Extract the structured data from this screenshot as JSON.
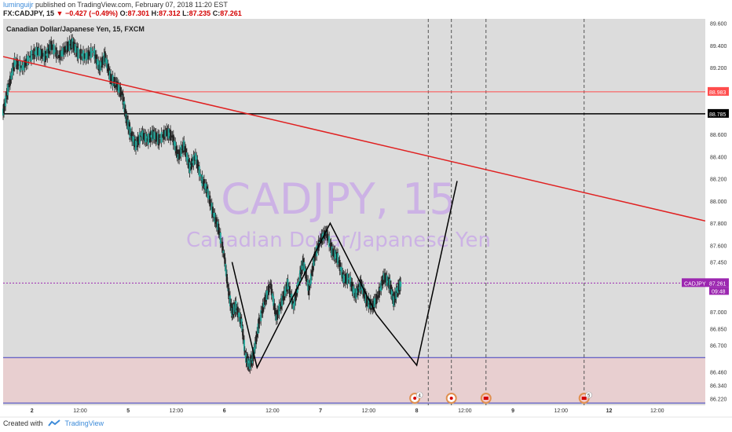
{
  "header": {
    "user": "luminguijr",
    "published": "published on TradingView.com, February 07, 2018 11:20 EST",
    "symbol_line": "FX:CADJPY, 15",
    "change": "−0.427 (−0.49%)",
    "ohlc": [
      {
        "label": "O:",
        "value": "87.301"
      },
      {
        "label": "H:",
        "value": "87.312"
      },
      {
        "label": "L:",
        "value": "87.235"
      },
      {
        "label": "C:",
        "value": "87.261"
      }
    ]
  },
  "footer": {
    "created_with": "Created with",
    "brand": "TradingView"
  },
  "chart_data": {
    "type": "candlestick",
    "title": "Canadian Dollar/Japanese Yen, 15, FXCM",
    "watermark": {
      "symbol": "CADJPY, 15",
      "name": "Canadian Dollar/Japanese Yen"
    },
    "ylim": [
      86.16,
      89.64
    ],
    "y_ticks": [
      "89.600",
      "89.400",
      "89.200",
      "89.000",
      "88.800",
      "88.600",
      "88.400",
      "88.200",
      "88.000",
      "87.800",
      "87.600",
      "87.450",
      "87.200",
      "87.000",
      "86.850",
      "86.700",
      "86.460",
      "86.340",
      "86.220"
    ],
    "y_tick_values": [
      89.6,
      89.4,
      89.2,
      89.0,
      88.8,
      88.6,
      88.4,
      88.2,
      88.0,
      87.8,
      87.6,
      87.45,
      87.2,
      87.0,
      86.85,
      86.7,
      86.46,
      86.34,
      86.22
    ],
    "x_range": [
      0,
      7.3
    ],
    "x_ticks": [
      {
        "label": "2",
        "x": 0.3
      },
      {
        "label": "12:00",
        "x": 0.8
      },
      {
        "label": "5",
        "x": 1.3
      },
      {
        "label": "12:00",
        "x": 1.8
      },
      {
        "label": "6",
        "x": 2.3
      },
      {
        "label": "12:00",
        "x": 2.8
      },
      {
        "label": "7",
        "x": 3.3
      },
      {
        "label": "12:00",
        "x": 3.8
      },
      {
        "label": "8",
        "x": 4.3
      },
      {
        "label": "12:00",
        "x": 4.8
      },
      {
        "label": "9",
        "x": 5.3
      },
      {
        "label": "12:00",
        "x": 5.8
      },
      {
        "label": "12",
        "x": 6.3
      },
      {
        "label": "12:00",
        "x": 6.8
      }
    ],
    "price_path": [
      [
        0.0,
        88.8
      ],
      [
        0.05,
        89.0
      ],
      [
        0.12,
        89.25
      ],
      [
        0.2,
        89.2
      ],
      [
        0.28,
        89.3
      ],
      [
        0.36,
        89.35
      ],
      [
        0.44,
        89.3
      ],
      [
        0.5,
        89.4
      ],
      [
        0.58,
        89.3
      ],
      [
        0.66,
        89.38
      ],
      [
        0.72,
        89.42
      ],
      [
        0.78,
        89.33
      ],
      [
        0.86,
        89.3
      ],
      [
        0.94,
        89.35
      ],
      [
        1.0,
        89.2
      ],
      [
        1.06,
        89.3
      ],
      [
        1.12,
        89.1
      ],
      [
        1.18,
        89.05
      ],
      [
        1.24,
        88.95
      ],
      [
        1.28,
        88.75
      ],
      [
        1.32,
        88.62
      ],
      [
        1.38,
        88.5
      ],
      [
        1.44,
        88.6
      ],
      [
        1.5,
        88.55
      ],
      [
        1.56,
        88.6
      ],
      [
        1.62,
        88.55
      ],
      [
        1.7,
        88.62
      ],
      [
        1.76,
        88.58
      ],
      [
        1.82,
        88.4
      ],
      [
        1.88,
        88.5
      ],
      [
        1.94,
        88.3
      ],
      [
        2.0,
        88.4
      ],
      [
        2.06,
        88.2
      ],
      [
        2.12,
        88.1
      ],
      [
        2.18,
        87.9
      ],
      [
        2.24,
        87.75
      ],
      [
        2.3,
        87.5
      ],
      [
        2.34,
        87.2
      ],
      [
        2.38,
        87.0
      ],
      [
        2.42,
        87.05
      ],
      [
        2.48,
        86.9
      ],
      [
        2.52,
        86.6
      ],
      [
        2.56,
        86.52
      ],
      [
        2.6,
        86.6
      ],
      [
        2.66,
        86.9
      ],
      [
        2.72,
        87.1
      ],
      [
        2.78,
        87.25
      ],
      [
        2.84,
        86.95
      ],
      [
        2.9,
        87.1
      ],
      [
        2.96,
        87.25
      ],
      [
        3.02,
        87.05
      ],
      [
        3.08,
        87.3
      ],
      [
        3.12,
        87.45
      ],
      [
        3.18,
        87.2
      ],
      [
        3.24,
        87.5
      ],
      [
        3.3,
        87.65
      ],
      [
        3.36,
        87.72
      ],
      [
        3.42,
        87.55
      ],
      [
        3.48,
        87.48
      ],
      [
        3.54,
        87.3
      ],
      [
        3.6,
        87.3
      ],
      [
        3.66,
        87.15
      ],
      [
        3.72,
        87.25
      ],
      [
        3.78,
        87.1
      ],
      [
        3.84,
        87.05
      ],
      [
        3.9,
        87.15
      ],
      [
        3.96,
        87.32
      ],
      [
        4.02,
        87.25
      ],
      [
        4.06,
        87.1
      ],
      [
        4.1,
        87.2
      ],
      [
        4.14,
        87.26
      ]
    ],
    "levels": [
      {
        "label": "88.983",
        "value": 88.983,
        "color": "#ff4d4d"
      },
      {
        "label": "88.785",
        "value": 88.785,
        "color": "#000000"
      },
      {
        "label": "CADJPY",
        "value": 87.261,
        "color": "#9c27b0",
        "price": "87.261",
        "time": "09:48"
      },
      {
        "label": "",
        "value": 86.59,
        "color": "#3f3fbf"
      },
      {
        "label": "",
        "value": 86.18,
        "color": "#3f3fbf"
      }
    ],
    "trendline": {
      "start": [
        0.0,
        89.3
      ],
      "end": [
        7.3,
        87.82
      ],
      "color": "#e02020"
    },
    "zigzag": [
      [
        2.38,
        87.45
      ],
      [
        2.64,
        86.5
      ],
      [
        3.4,
        87.8
      ],
      [
        3.88,
        86.98
      ],
      [
        4.3,
        86.52
      ],
      [
        4.72,
        88.18
      ]
    ],
    "event_lines_x": [
      4.42,
      4.66,
      5.02,
      6.04
    ],
    "event_markers": [
      {
        "x": 4.28,
        "kind": "flag-circle",
        "count": "4"
      },
      {
        "x": 4.66,
        "kind": "circle",
        "count": ""
      },
      {
        "x": 5.02,
        "kind": "flag-canada",
        "count": ""
      },
      {
        "x": 6.04,
        "kind": "flag-canada",
        "count": "5"
      }
    ],
    "zone_between": [
      86.18,
      86.59
    ],
    "colors": {
      "up": "#26a69a",
      "down": "#222222",
      "background": "#dcdcdc",
      "zone": "#e8cfd0"
    }
  }
}
